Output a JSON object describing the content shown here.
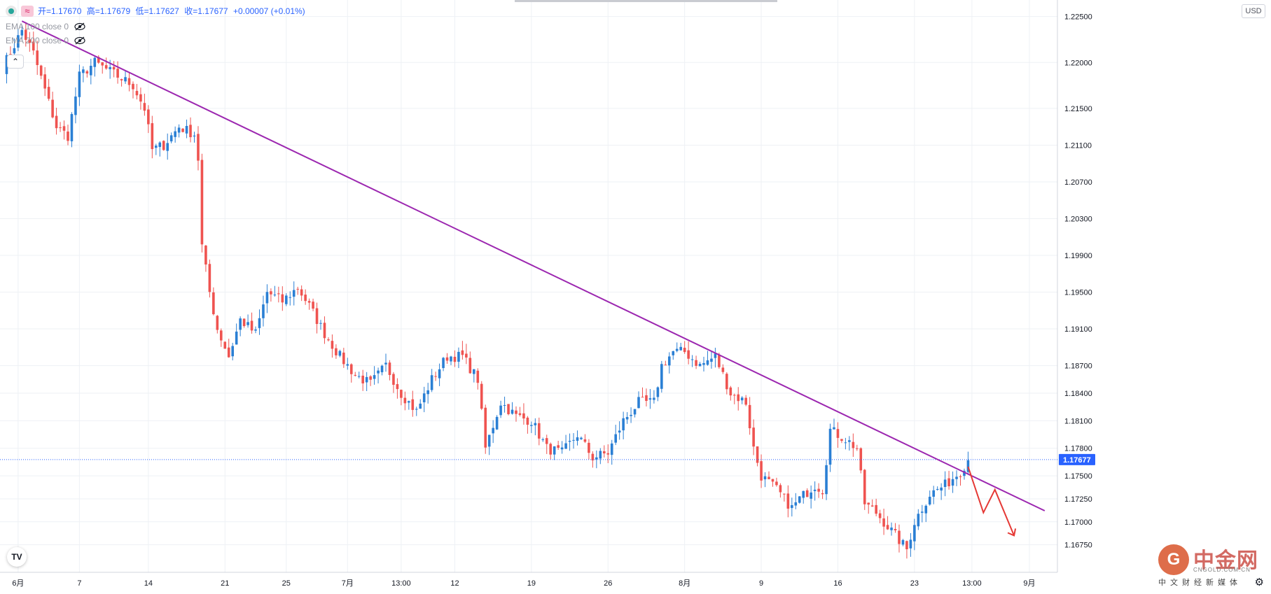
{
  "legend": {
    "open_label": "开=1.17670",
    "high_label": "高=1.17679",
    "low_label": "低=1.17627",
    "close_label": "收=1.17677",
    "change_label": "+0.00007 (+0.01%)"
  },
  "indicators": [
    {
      "label": "EMA 100 close 0",
      "icon": "eye-hidden-icon"
    },
    {
      "label": "EMA 200 close 0",
      "icon": "eye-hidden-icon"
    }
  ],
  "currency_button": "USD",
  "last_price_label": "1.17677",
  "watermark": {
    "brand": "中金网",
    "site": "CNGOLD.COM.CN",
    "tagline": "中文财经新媒体"
  },
  "colors": {
    "up": "#2a7fd4",
    "down": "#ef5350",
    "trendline": "#9c27b0",
    "arrow": "#e53935",
    "grid": "#eef1f5"
  },
  "chart_data": {
    "type": "candlestick",
    "price_scale": {
      "min": 1.1645,
      "max": 1.2268
    },
    "y_ticks": [
      1.225,
      1.22,
      1.215,
      1.211,
      1.207,
      1.203,
      1.199,
      1.195,
      1.191,
      1.187,
      1.184,
      1.181,
      1.178,
      1.175,
      1.1725,
      1.17,
      1.1675
    ],
    "y_tick_labels": [
      "1.22500",
      "1.22000",
      "1.21500",
      "1.21100",
      "1.20700",
      "1.20300",
      "1.19900",
      "1.19500",
      "1.19100",
      "1.18700",
      "1.18400",
      "1.18100",
      "1.17800",
      "1.17500",
      "1.17250",
      "1.17000",
      "1.16750"
    ],
    "x_ticks": [
      {
        "label": "6月",
        "index": 4
      },
      {
        "label": "7",
        "index": 20
      },
      {
        "label": "14",
        "index": 38
      },
      {
        "label": "21",
        "index": 58
      },
      {
        "label": "25",
        "index": 74
      },
      {
        "label": "7月",
        "index": 90
      },
      {
        "label": "13:00",
        "index": 104
      },
      {
        "label": "12",
        "index": 118
      },
      {
        "label": "19",
        "index": 138
      },
      {
        "label": "26",
        "index": 158
      },
      {
        "label": "8月",
        "index": 178
      },
      {
        "label": "9",
        "index": 198
      },
      {
        "label": "16",
        "index": 218
      },
      {
        "label": "23",
        "index": 238
      },
      {
        "label": "13:00",
        "index": 253
      },
      {
        "label": "9月",
        "index": 268
      }
    ],
    "anchors": [
      [
        0,
        1.2195
      ],
      [
        5,
        1.2235
      ],
      [
        8,
        1.221
      ],
      [
        11,
        1.217
      ],
      [
        14,
        1.213
      ],
      [
        17,
        1.212
      ],
      [
        20,
        1.2185
      ],
      [
        24,
        1.22
      ],
      [
        30,
        1.2185
      ],
      [
        34,
        1.2175
      ],
      [
        37,
        1.215
      ],
      [
        39,
        1.2105
      ],
      [
        42,
        1.211
      ],
      [
        46,
        1.213
      ],
      [
        50,
        1.2122
      ],
      [
        51,
        1.2095
      ],
      [
        52,
        1.2
      ],
      [
        54,
        1.195
      ],
      [
        56,
        1.191
      ],
      [
        59,
        1.188
      ],
      [
        62,
        1.192
      ],
      [
        66,
        1.1905
      ],
      [
        69,
        1.195
      ],
      [
        73,
        1.194
      ],
      [
        77,
        1.1955
      ],
      [
        80,
        1.1935
      ],
      [
        84,
        1.1905
      ],
      [
        88,
        1.188
      ],
      [
        92,
        1.186
      ],
      [
        96,
        1.185
      ],
      [
        100,
        1.187
      ],
      [
        104,
        1.184
      ],
      [
        108,
        1.182
      ],
      [
        112,
        1.1855
      ],
      [
        116,
        1.188
      ],
      [
        120,
        1.188
      ],
      [
        124,
        1.1855
      ],
      [
        126,
        1.178
      ],
      [
        130,
        1.183
      ],
      [
        134,
        1.1815
      ],
      [
        138,
        1.181
      ],
      [
        142,
        1.178
      ],
      [
        146,
        1.1775
      ],
      [
        150,
        1.1795
      ],
      [
        154,
        1.177
      ],
      [
        158,
        1.1775
      ],
      [
        162,
        1.181
      ],
      [
        166,
        1.183
      ],
      [
        170,
        1.183
      ],
      [
        172,
        1.187
      ],
      [
        175,
        1.1885
      ],
      [
        178,
        1.1885
      ],
      [
        182,
        1.187
      ],
      [
        186,
        1.188
      ],
      [
        188,
        1.186
      ],
      [
        190,
        1.184
      ],
      [
        194,
        1.183
      ],
      [
        196,
        1.178
      ],
      [
        198,
        1.175
      ],
      [
        202,
        1.1735
      ],
      [
        206,
        1.1715
      ],
      [
        208,
        1.1725
      ],
      [
        212,
        1.174
      ],
      [
        214,
        1.1735
      ],
      [
        216,
        1.18
      ],
      [
        220,
        1.179
      ],
      [
        223,
        1.178
      ],
      [
        225,
        1.172
      ],
      [
        228,
        1.171
      ],
      [
        231,
        1.1695
      ],
      [
        234,
        1.168
      ],
      [
        236,
        1.167
      ],
      [
        238,
        1.17
      ],
      [
        242,
        1.173
      ],
      [
        246,
        1.174
      ],
      [
        250,
        1.1755
      ],
      [
        252,
        1.1768
      ]
    ],
    "trendline": {
      "from": {
        "index": 5,
        "price": 1.2245
      },
      "to": {
        "index": 272,
        "price": 1.1712
      }
    },
    "projection_arrow": [
      {
        "index": 252,
        "price": 1.176
      },
      {
        "index": 256,
        "price": 1.171
      },
      {
        "index": 259,
        "price": 1.1735
      },
      {
        "index": 264,
        "price": 1.1685
      }
    ]
  }
}
